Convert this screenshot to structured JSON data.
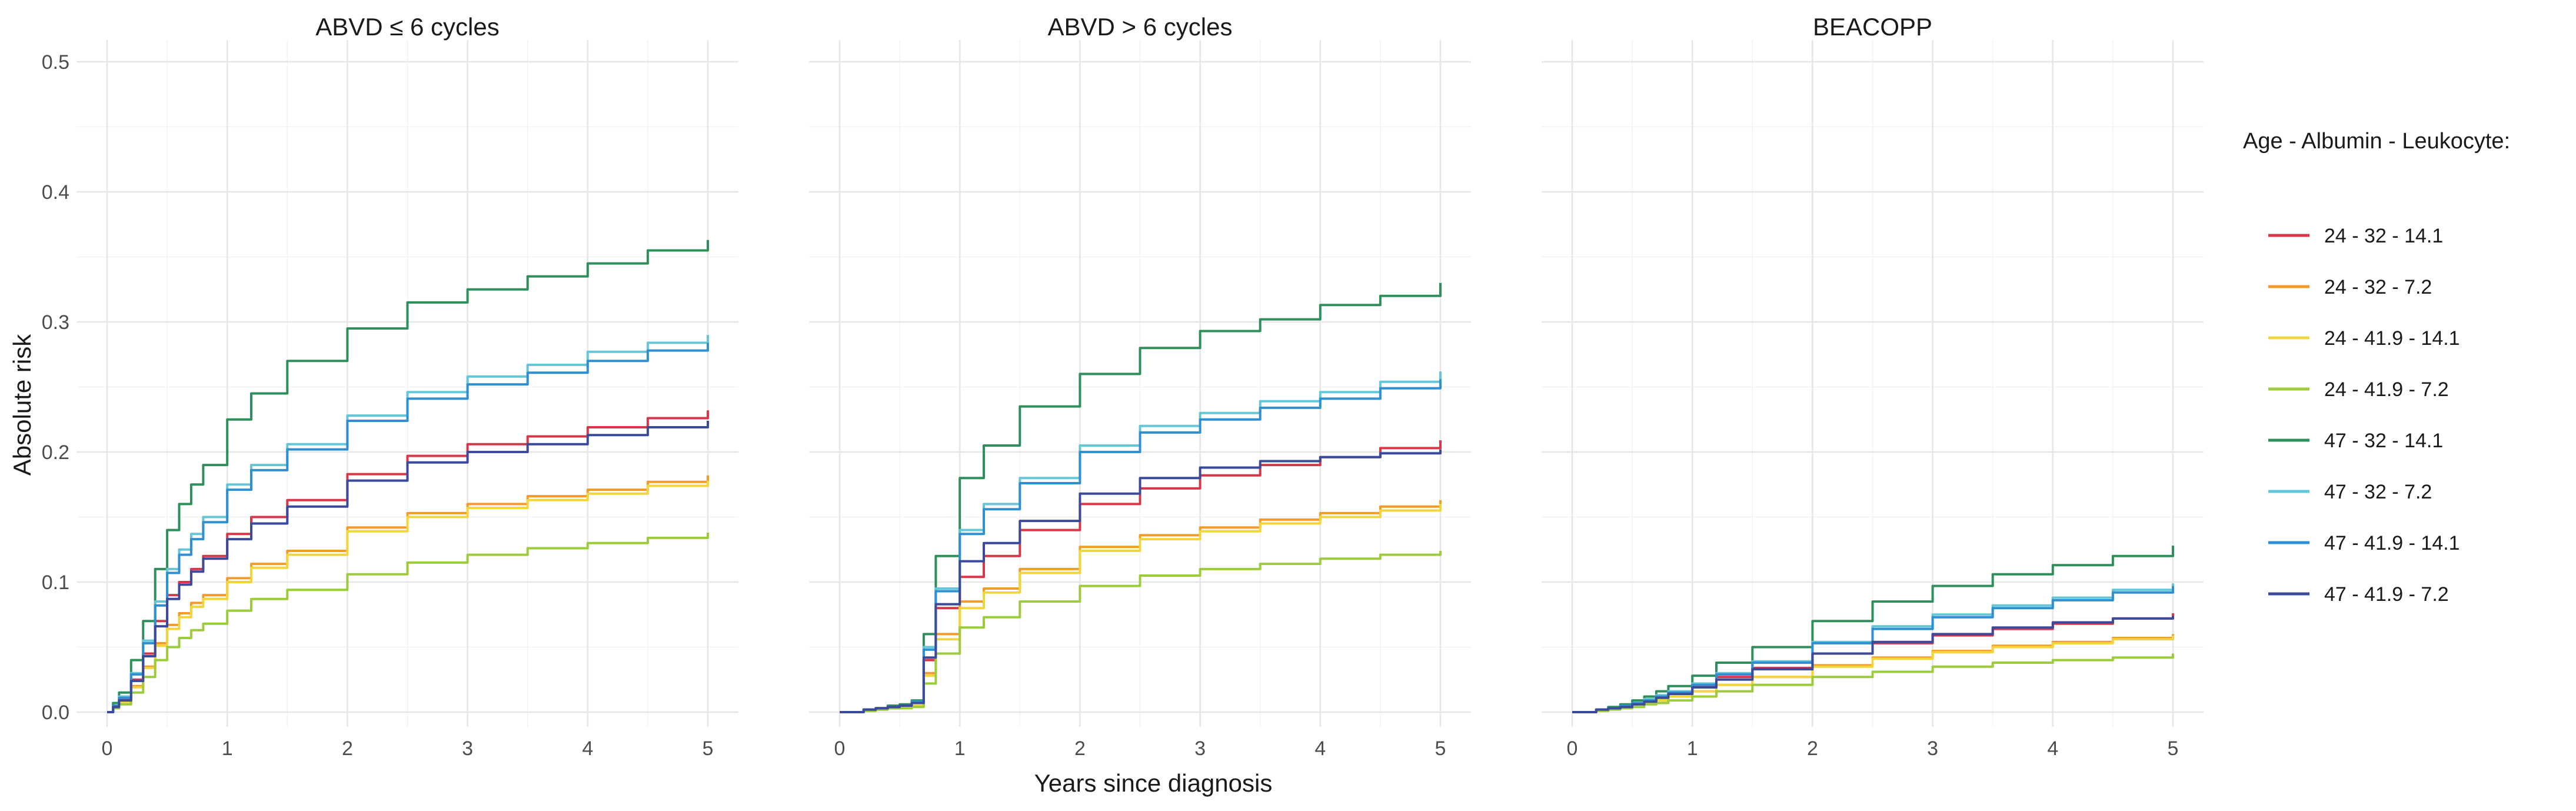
{
  "chart_data": {
    "type": "line",
    "step": true,
    "xlabel": "Years since diagnosis",
    "ylabel": "Absolute risk",
    "xlim": [
      0,
      5
    ],
    "ylim": [
      0,
      0.5
    ],
    "x_ticks": [
      0,
      1,
      2,
      3,
      4,
      5
    ],
    "x_tick_labels": [
      "0",
      "1",
      "2",
      "3",
      "4",
      "5"
    ],
    "y_ticks": [
      0,
      0.1,
      0.2,
      0.3,
      0.4,
      0.5
    ],
    "y_tick_labels": [
      "0.0",
      "0.1",
      "0.2",
      "0.3",
      "0.4",
      "0.5"
    ],
    "grid": true,
    "legend": {
      "title": "Age - Albumin - Leukocyte:",
      "position": "right",
      "entries": [
        {
          "label": "24 - 32 - 14.1",
          "color": "#d8374a"
        },
        {
          "label": "24 - 32 - 7.2",
          "color": "#f39b29"
        },
        {
          "label": "24 - 41.9 - 14.1",
          "color": "#f2d53c"
        },
        {
          "label": "24 - 41.9 - 7.2",
          "color": "#9ccb3c"
        },
        {
          "label": "47 - 32 - 14.1",
          "color": "#2f8f5a"
        },
        {
          "label": "47 - 32 - 7.2",
          "color": "#64c6d6"
        },
        {
          "label": "47 - 41.9 - 14.1",
          "color": "#2f8fd0"
        },
        {
          "label": "47 - 41.9 - 7.2",
          "color": "#3b4a9a"
        }
      ]
    },
    "x_grid": [
      0,
      0.05,
      0.1,
      0.2,
      0.3,
      0.4,
      0.5,
      0.6,
      0.7,
      0.8,
      1.0,
      1.2,
      1.5,
      2.0,
      2.5,
      3.0,
      3.5,
      4.0,
      4.5,
      5.0
    ],
    "panels": [
      {
        "title": "ABVD ≤ 6 cycles",
        "series": [
          {
            "name": "24 - 32 - 14.1",
            "values": [
              0,
              0.005,
              0.01,
              0.025,
              0.045,
              0.07,
              0.09,
              0.1,
              0.11,
              0.12,
              0.137,
              0.15,
              0.163,
              0.183,
              0.197,
              0.206,
              0.212,
              0.219,
              0.226,
              0.232
            ]
          },
          {
            "name": "24 - 32 - 7.2",
            "values": [
              0,
              0.004,
              0.008,
              0.02,
              0.035,
              0.053,
              0.067,
              0.076,
              0.084,
              0.09,
              0.103,
              0.114,
              0.124,
              0.142,
              0.153,
              0.16,
              0.166,
              0.171,
              0.177,
              0.182
            ]
          },
          {
            "name": "24 - 41.9 - 14.1",
            "values": [
              0,
              0.004,
              0.008,
              0.019,
              0.034,
              0.051,
              0.064,
              0.073,
              0.081,
              0.087,
              0.1,
              0.111,
              0.121,
              0.139,
              0.15,
              0.157,
              0.163,
              0.168,
              0.174,
              0.178
            ]
          },
          {
            "name": "24 - 41.9 - 7.2",
            "values": [
              0,
              0.003,
              0.006,
              0.015,
              0.027,
              0.04,
              0.05,
              0.057,
              0.063,
              0.068,
              0.078,
              0.087,
              0.094,
              0.106,
              0.115,
              0.121,
              0.126,
              0.13,
              0.134,
              0.138
            ]
          },
          {
            "name": "47 - 32 - 14.1",
            "values": [
              0,
              0.007,
              0.015,
              0.04,
              0.07,
              0.11,
              0.14,
              0.16,
              0.175,
              0.19,
              0.225,
              0.245,
              0.27,
              0.295,
              0.315,
              0.325,
              0.335,
              0.345,
              0.355,
              0.363
            ]
          },
          {
            "name": "47 - 32 - 7.2",
            "values": [
              0,
              0.005,
              0.012,
              0.03,
              0.055,
              0.085,
              0.11,
              0.125,
              0.137,
              0.15,
              0.175,
              0.19,
              0.206,
              0.228,
              0.246,
              0.258,
              0.267,
              0.277,
              0.284,
              0.29
            ]
          },
          {
            "name": "47 - 41.9 - 14.1",
            "values": [
              0,
              0.005,
              0.011,
              0.029,
              0.053,
              0.082,
              0.107,
              0.121,
              0.133,
              0.146,
              0.171,
              0.186,
              0.202,
              0.224,
              0.241,
              0.252,
              0.261,
              0.27,
              0.278,
              0.284
            ]
          },
          {
            "name": "47 - 41.9 - 7.2",
            "values": [
              0,
              0.004,
              0.009,
              0.024,
              0.043,
              0.066,
              0.087,
              0.098,
              0.108,
              0.118,
              0.133,
              0.145,
              0.158,
              0.178,
              0.192,
              0.2,
              0.206,
              0.213,
              0.219,
              0.224
            ]
          }
        ]
      },
      {
        "title": "ABVD > 6 cycles",
        "series": [
          {
            "name": "24 - 32 - 14.1",
            "values": [
              0,
              0,
              0,
              0.002,
              0.003,
              0.004,
              0.005,
              0.007,
              0.04,
              0.08,
              0.104,
              0.12,
              0.14,
              0.16,
              0.172,
              0.182,
              0.19,
              0.196,
              0.203,
              0.209
            ]
          },
          {
            "name": "24 - 32 - 7.2",
            "values": [
              0,
              0,
              0,
              0.001,
              0.002,
              0.003,
              0.004,
              0.005,
              0.03,
              0.06,
              0.085,
              0.095,
              0.11,
              0.127,
              0.136,
              0.142,
              0.148,
              0.153,
              0.158,
              0.163
            ]
          },
          {
            "name": "24 - 41.9 - 14.1",
            "values": [
              0,
              0,
              0,
              0.001,
              0.002,
              0.003,
              0.004,
              0.005,
              0.028,
              0.056,
              0.08,
              0.092,
              0.107,
              0.124,
              0.133,
              0.139,
              0.145,
              0.15,
              0.155,
              0.16
            ]
          },
          {
            "name": "24 - 41.9 - 7.2",
            "values": [
              0,
              0,
              0,
              0.001,
              0.002,
              0.003,
              0.003,
              0.004,
              0.022,
              0.045,
              0.065,
              0.073,
              0.085,
              0.097,
              0.105,
              0.11,
              0.114,
              0.118,
              0.121,
              0.124
            ]
          },
          {
            "name": "47 - 32 - 14.1",
            "values": [
              0,
              0,
              0,
              0.002,
              0.003,
              0.005,
              0.006,
              0.009,
              0.06,
              0.12,
              0.18,
              0.205,
              0.235,
              0.26,
              0.28,
              0.293,
              0.302,
              0.313,
              0.32,
              0.33
            ]
          },
          {
            "name": "47 - 32 - 7.2",
            "values": [
              0,
              0,
              0,
              0.002,
              0.003,
              0.004,
              0.005,
              0.008,
              0.05,
              0.095,
              0.14,
              0.16,
              0.18,
              0.205,
              0.22,
              0.23,
              0.239,
              0.246,
              0.254,
              0.262
            ]
          },
          {
            "name": "47 - 41.9 - 14.1",
            "values": [
              0,
              0,
              0,
              0.002,
              0.003,
              0.004,
              0.005,
              0.008,
              0.048,
              0.093,
              0.137,
              0.156,
              0.176,
              0.2,
              0.215,
              0.225,
              0.234,
              0.241,
              0.249,
              0.256
            ]
          },
          {
            "name": "47 - 41.9 - 7.2",
            "values": [
              0,
              0,
              0,
              0.002,
              0.003,
              0.004,
              0.005,
              0.007,
              0.042,
              0.083,
              0.116,
              0.13,
              0.147,
              0.168,
              0.18,
              0.188,
              0.193,
              0.196,
              0.199,
              0.202
            ]
          }
        ]
      },
      {
        "title": "BEACOPP",
        "series": [
          {
            "name": "24 - 32 - 14.1",
            "values": [
              0,
              0,
              0,
              0.002,
              0.003,
              0.005,
              0.007,
              0.009,
              0.012,
              0.015,
              0.02,
              0.027,
              0.034,
              0.045,
              0.053,
              0.059,
              0.064,
              0.068,
              0.072,
              0.076
            ]
          },
          {
            "name": "24 - 32 - 7.2",
            "values": [
              0,
              0,
              0,
              0.001,
              0.003,
              0.004,
              0.006,
              0.007,
              0.009,
              0.012,
              0.016,
              0.021,
              0.027,
              0.036,
              0.042,
              0.047,
              0.051,
              0.054,
              0.057,
              0.06
            ]
          },
          {
            "name": "24 - 41.9 - 14.1",
            "values": [
              0,
              0,
              0,
              0.001,
              0.003,
              0.004,
              0.006,
              0.007,
              0.009,
              0.012,
              0.016,
              0.021,
              0.027,
              0.035,
              0.041,
              0.046,
              0.05,
              0.053,
              0.056,
              0.059
            ]
          },
          {
            "name": "24 - 41.9 - 7.2",
            "values": [
              0,
              0,
              0,
              0.001,
              0.002,
              0.003,
              0.004,
              0.006,
              0.007,
              0.009,
              0.012,
              0.016,
              0.021,
              0.027,
              0.031,
              0.035,
              0.038,
              0.04,
              0.042,
              0.045
            ]
          },
          {
            "name": "47 - 32 - 14.1",
            "values": [
              0,
              0,
              0,
              0.002,
              0.004,
              0.006,
              0.009,
              0.012,
              0.016,
              0.02,
              0.028,
              0.038,
              0.05,
              0.07,
              0.085,
              0.097,
              0.106,
              0.113,
              0.12,
              0.128
            ]
          },
          {
            "name": "47 - 32 - 7.2",
            "values": [
              0,
              0,
              0,
              0.002,
              0.003,
              0.005,
              0.007,
              0.01,
              0.013,
              0.016,
              0.022,
              0.03,
              0.039,
              0.054,
              0.066,
              0.075,
              0.082,
              0.088,
              0.094,
              0.099
            ]
          },
          {
            "name": "47 - 41.9 - 14.1",
            "values": [
              0,
              0,
              0,
              0.002,
              0.003,
              0.005,
              0.007,
              0.009,
              0.012,
              0.015,
              0.021,
              0.029,
              0.038,
              0.053,
              0.064,
              0.073,
              0.08,
              0.086,
              0.092,
              0.097
            ]
          },
          {
            "name": "47 - 41.9 - 7.2",
            "values": [
              0,
              0,
              0,
              0.002,
              0.003,
              0.004,
              0.006,
              0.008,
              0.011,
              0.014,
              0.019,
              0.025,
              0.033,
              0.045,
              0.054,
              0.06,
              0.065,
              0.069,
              0.072,
              0.074
            ]
          }
        ]
      }
    ]
  }
}
